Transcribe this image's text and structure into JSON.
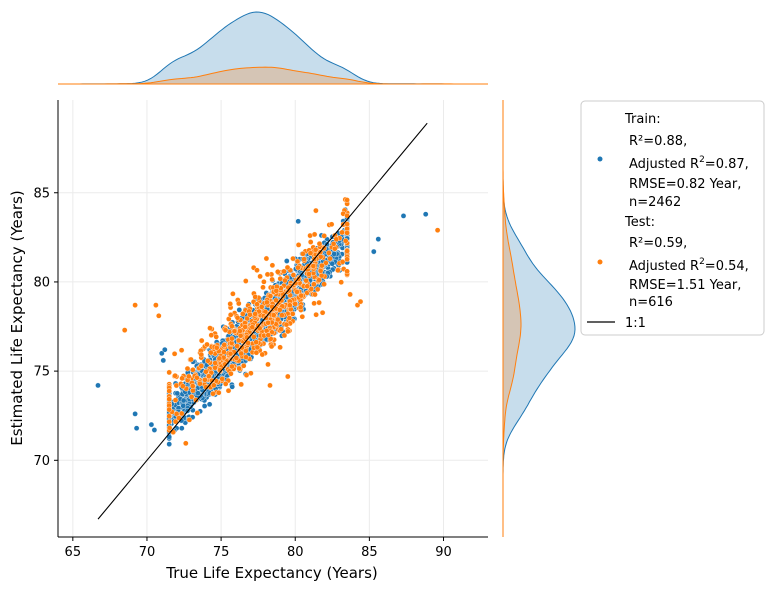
{
  "chart_data": {
    "type": "scatter",
    "xlabel": "True Life Expectancy (Years)",
    "ylabel": "Estimated Life Expectancy (Years)",
    "xlim": [
      64.0,
      93.0
    ],
    "ylim": [
      65.7,
      90.2
    ],
    "x_ticks": [
      65,
      70,
      75,
      80,
      85,
      90
    ],
    "y_ticks": [
      70,
      75,
      80,
      85
    ],
    "x_tick_labels": [
      "65",
      "70",
      "75",
      "80",
      "85",
      "90"
    ],
    "y_tick_labels": [
      "70",
      "75",
      "80",
      "85"
    ],
    "grid": true,
    "legend_position": "outside right",
    "colors": {
      "train": "#1f77b4",
      "test": "#ff7f0e",
      "identity": "#000000"
    },
    "series": [
      {
        "name": "Train",
        "legend_title": "Train:",
        "metrics": {
          "r2": "R²=0.88,",
          "adj_r2_prefix": "Adjusted R",
          "adj_r2_suffix": "=0.87,",
          "rmse": "RMSE=0.82 Year,",
          "n": "n=2462"
        },
        "n_points": 2462,
        "trend": {
          "slope": 0.82,
          "intercept": 14.0,
          "spread_sd": 0.82
        },
        "x_distribution": {
          "center": 77.3,
          "sd": 3.2
        },
        "points": [
          [
            66.7,
            74.2
          ],
          [
            69.2,
            72.6
          ],
          [
            69.3,
            71.8
          ],
          [
            70.3,
            72.0
          ],
          [
            70.5,
            71.7
          ],
          [
            71.0,
            76.0
          ],
          [
            71.1,
            75.6
          ],
          [
            71.2,
            76.2
          ],
          [
            71.5,
            72.5
          ],
          [
            72.0,
            71.8
          ],
          [
            85.3,
            81.7
          ],
          [
            85.6,
            82.4
          ],
          [
            87.3,
            83.7
          ],
          [
            88.8,
            83.8
          ],
          [
            80.2,
            83.4
          ]
        ]
      },
      {
        "name": "Test",
        "legend_title": "Test:",
        "metrics": {
          "r2": "R²=0.59,",
          "adj_r2_prefix": "Adjusted R",
          "adj_r2_suffix": "=0.54,",
          "rmse": "RMSE=1.51 Year,",
          "n": "n=616"
        },
        "n_points": 616,
        "trend": {
          "slope": 0.72,
          "intercept": 22.0,
          "spread_sd": 1.51
        },
        "x_distribution": {
          "center": 77.6,
          "sd": 3.0
        },
        "points": [
          [
            68.5,
            77.3
          ],
          [
            69.2,
            78.7
          ],
          [
            70.6,
            78.7
          ],
          [
            70.8,
            78.1
          ],
          [
            72.0,
            72.6
          ],
          [
            78.3,
            74.2
          ],
          [
            79.5,
            74.7
          ],
          [
            84.2,
            78.7
          ],
          [
            84.4,
            78.9
          ],
          [
            89.6,
            82.9
          ],
          [
            83.5,
            82.8
          ],
          [
            82.3,
            83.2
          ],
          [
            81.0,
            82.6
          ],
          [
            77.2,
            80.8
          ],
          [
            83.7,
            79.3
          ]
        ]
      }
    ],
    "reference_line": {
      "name": "1:1",
      "x": [
        66.7,
        88.9
      ],
      "y": [
        66.7,
        88.9
      ]
    }
  }
}
